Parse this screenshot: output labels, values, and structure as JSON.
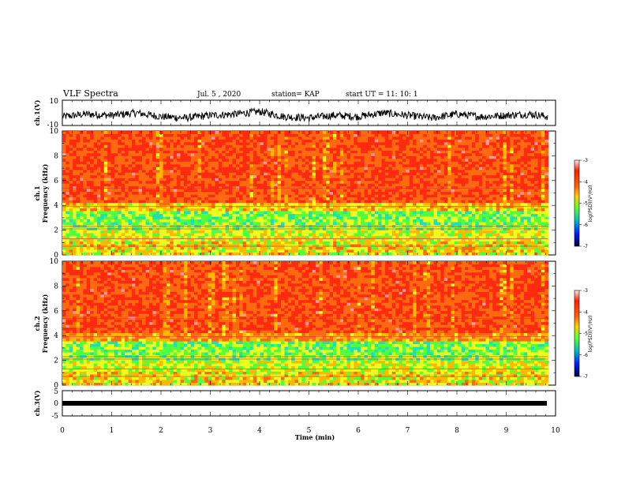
{
  "header": {
    "title": "VLF Spectra",
    "date": "Jul. 5 , 2020",
    "station": "station= KAP",
    "start": "start UT =   11: 10: 1"
  },
  "colors": {
    "trace": "#000000",
    "spectrogram_palette": [
      "#ff2a00",
      "#ff5a10",
      "#ffb000",
      "#f0ff00",
      "#40ff40",
      "#00d0a0",
      "#0050ff",
      "#000080"
    ]
  },
  "chart_data": [
    {
      "type": "line",
      "panel": "ch1-waveform",
      "ylabel": "ch.1(V)",
      "ylim": [
        -10,
        10
      ],
      "ytick_labels": [
        "-10",
        "10"
      ],
      "xlim": [
        0,
        10
      ],
      "series": [
        {
          "x": [
            0,
            0.5,
            1,
            1.5,
            2,
            2.5,
            3,
            3.5,
            4,
            4.5,
            5,
            5.5,
            6,
            6.5,
            7,
            7.5,
            8,
            8.5,
            9,
            9.5,
            9.85
          ],
          "values": [
            1,
            3,
            2,
            4,
            1,
            0,
            2,
            3,
            5,
            1,
            0,
            2,
            1,
            4,
            2,
            0,
            3,
            1,
            2,
            3,
            1
          ]
        }
      ]
    },
    {
      "type": "heatmap",
      "panel": "ch1-spectrogram",
      "ylabel_line1": "ch.1",
      "ylabel_line2": "Frequency (kHz)",
      "ylim": [
        0,
        10
      ],
      "ytick_labels": [
        "0",
        "2",
        "4",
        "6",
        "8",
        "10"
      ],
      "xlim": [
        0,
        9.85
      ],
      "colorbar": {
        "label": "log(PSD)(V²/Hz)",
        "ticks": [
          "-3",
          "-4",
          "-5",
          "-6",
          "-7"
        ],
        "range": [
          -7,
          -3
        ]
      }
    },
    {
      "type": "heatmap",
      "panel": "ch2-spectrogram",
      "ylabel_line1": "ch.2",
      "ylabel_line2": "Frequency (kHz)",
      "ylim": [
        0,
        10
      ],
      "ytick_labels": [
        "0",
        "2",
        "4",
        "6",
        "8",
        "10"
      ],
      "xlim": [
        0,
        9.85
      ],
      "colorbar": {
        "label": "log(PSD)(V²/Hz)",
        "ticks": [
          "-3",
          "-4",
          "-5",
          "-6",
          "-7"
        ],
        "range": [
          -7,
          -3
        ]
      }
    },
    {
      "type": "line",
      "panel": "ch3-waveform",
      "ylabel": "ch.3(V)",
      "ylim": [
        -5,
        5
      ],
      "ytick_labels": [
        "-5",
        "0",
        "5"
      ],
      "xlim": [
        0,
        10
      ],
      "series": [
        {
          "x": [
            0,
            9.85
          ],
          "values": [
            0,
            0
          ]
        }
      ]
    }
  ],
  "xaxis": {
    "label": "Time (min)",
    "tick_labels": [
      "0",
      "1",
      "2",
      "3",
      "4",
      "5",
      "6",
      "7",
      "8",
      "9",
      "10"
    ]
  }
}
